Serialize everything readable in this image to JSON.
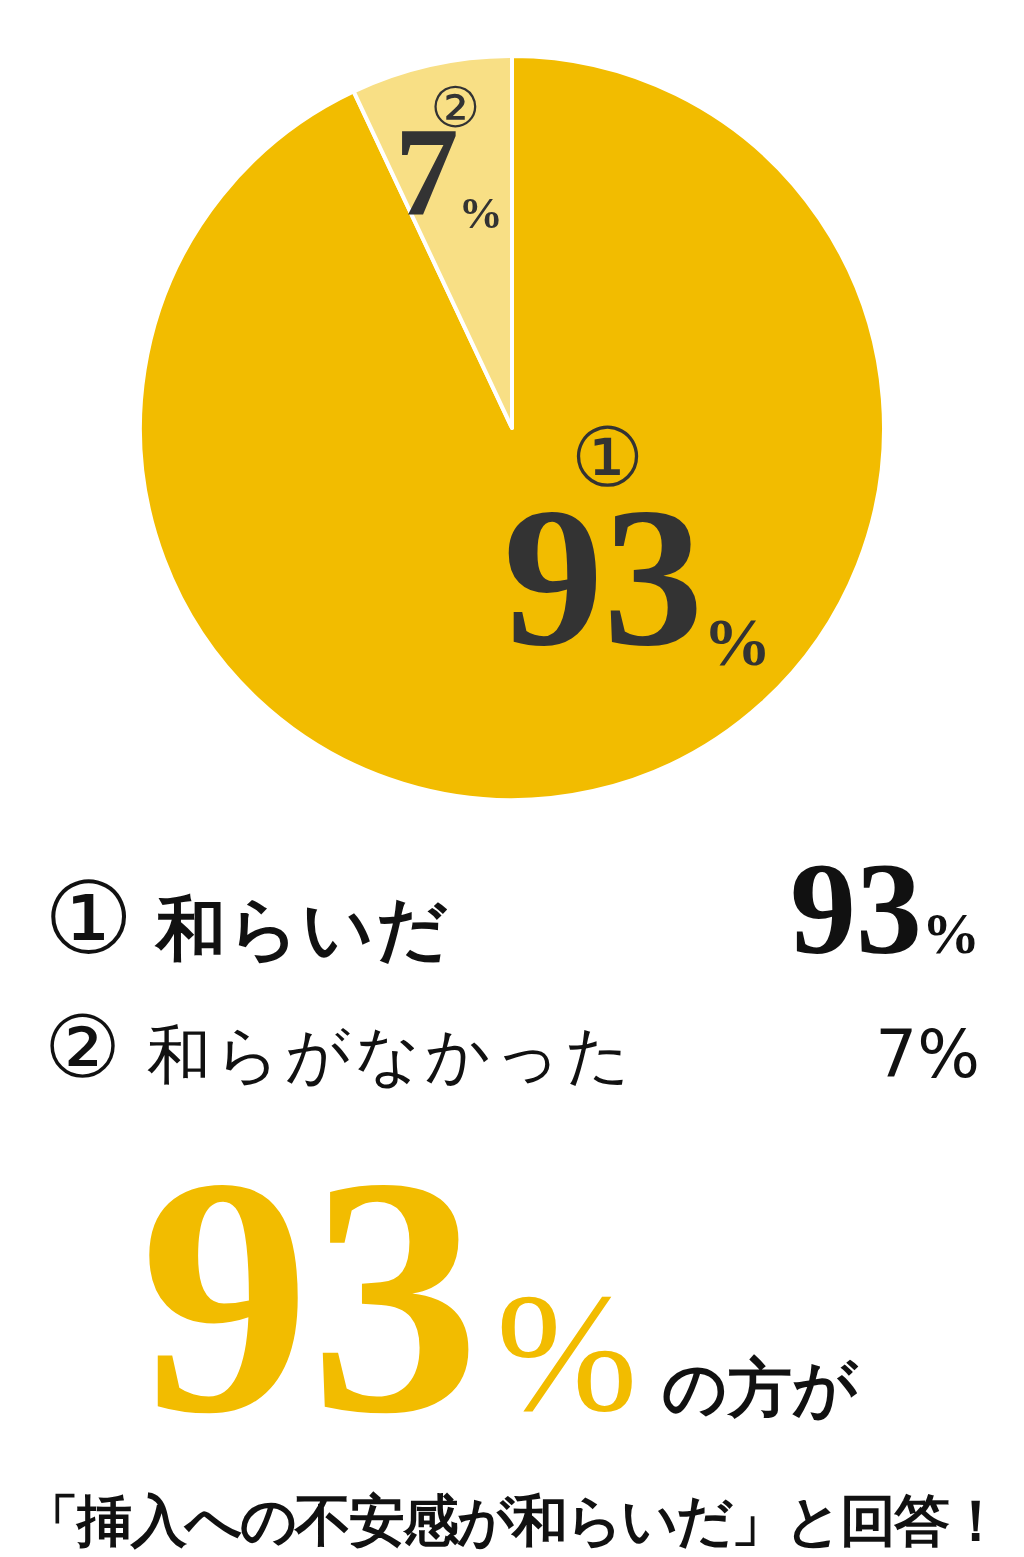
{
  "chart_data": {
    "type": "pie",
    "categories": [
      "①",
      "②"
    ],
    "values": [
      93,
      7
    ],
    "colors": [
      "#f2bc00",
      "#f8df85"
    ],
    "value_labels": [
      "93%",
      "7%"
    ],
    "annotations": [
      "和らいだ",
      "和らがなかった",
      "93%の方が",
      "「挿入への不安感が和らいだ」と回答！"
    ]
  }
}
